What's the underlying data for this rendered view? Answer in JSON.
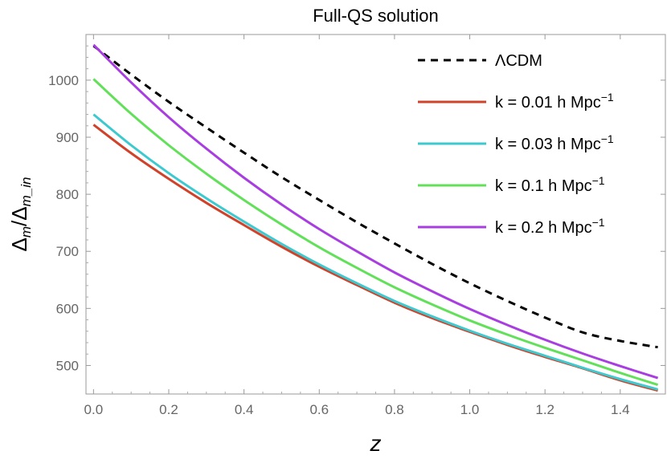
{
  "chart_data": {
    "type": "line",
    "title": "Full-QS solution",
    "xlabel": "z",
    "ylabel_main": "Δ",
    "ylabel_sub1": "m",
    "ylabel_slash": "/Δ",
    "ylabel_sub2": "m_in",
    "xlim": [
      -0.02,
      1.52
    ],
    "ylim": [
      450,
      1080
    ],
    "x_ticks": [
      "0.0",
      "0.2",
      "0.4",
      "0.6",
      "0.8",
      "1.0",
      "1.2",
      "1.4"
    ],
    "y_ticks": [
      "500",
      "600",
      "700",
      "800",
      "900",
      "1000"
    ],
    "grid": false,
    "legend_position": "top-right",
    "x": [
      0.0,
      0.1,
      0.2,
      0.3,
      0.4,
      0.5,
      0.6,
      0.7,
      0.8,
      0.9,
      1.0,
      1.1,
      1.2,
      1.3,
      1.4,
      1.5
    ],
    "series": [
      {
        "name": "ΛCDM",
        "color": "#000000",
        "dashed": true,
        "values": [
          1060,
          1010,
          962,
          917,
          873,
          830,
          790,
          751,
          714,
          678,
          644,
          613,
          584,
          558,
          543,
          532
        ]
      },
      {
        "name": "k = 0.01 h Mpc",
        "name_sup": "−1",
        "color": "#d0422a",
        "dashed": false,
        "values": [
          922,
          872,
          827,
          785,
          746,
          708,
          673,
          641,
          610,
          583,
          559,
          536,
          515,
          495,
          474,
          456
        ]
      },
      {
        "name": "k = 0.03 h Mpc",
        "name_sup": "−1",
        "color": "#3cc9cf",
        "dashed": false,
        "values": [
          940,
          886,
          837,
          793,
          752,
          713,
          677,
          644,
          613,
          586,
          561,
          538,
          517,
          496,
          476,
          458
        ]
      },
      {
        "name": "k = 0.1 h Mpc",
        "name_sup": "−1",
        "color": "#62e05a",
        "dashed": false,
        "values": [
          1002,
          941,
          886,
          836,
          790,
          747,
          707,
          671,
          637,
          607,
          579,
          554,
          531,
          509,
          487,
          466
        ]
      },
      {
        "name": "k = 0.2 h Mpc",
        "name_sup": "−1",
        "color": "#a93ee0",
        "dashed": false,
        "values": [
          1062,
          996,
          935,
          880,
          829,
          782,
          739,
          700,
          663,
          630,
          599,
          571,
          545,
          521,
          499,
          478
        ]
      }
    ]
  }
}
